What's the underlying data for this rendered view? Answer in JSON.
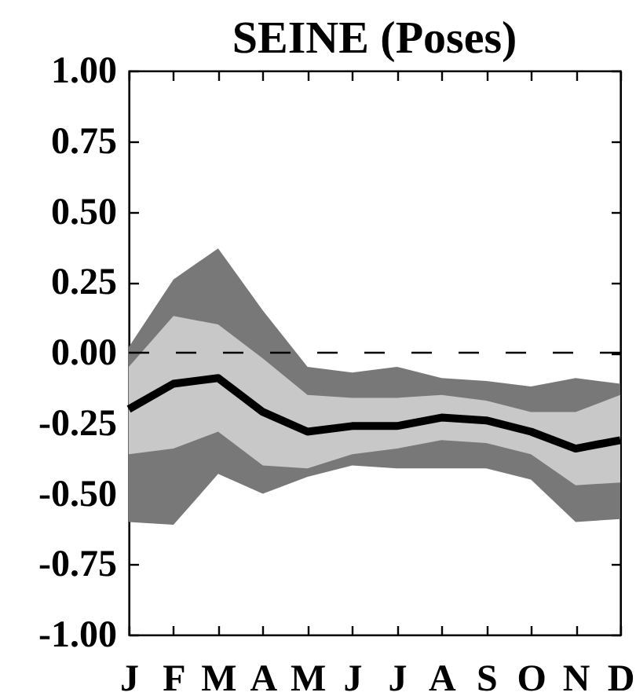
{
  "chart_data": {
    "type": "line",
    "title": "SEINE (Poses)",
    "categories": [
      "J",
      "F",
      "M",
      "A",
      "M",
      "J",
      "J",
      "A",
      "S",
      "O",
      "N",
      "D"
    ],
    "series": [
      {
        "color": "#787878",
        "values": [
          null,
          null,
          null,
          null,
          null,
          null,
          null,
          null,
          null,
          null,
          null,
          null
        ],
        "lower": [
          -0.6,
          -0.61,
          -0.43,
          -0.5,
          -0.44,
          -0.4,
          -0.41,
          -0.41,
          -0.41,
          -0.45,
          -0.6,
          -0.59
        ],
        "upper": [
          0.02,
          0.26,
          0.37,
          0.15,
          -0.05,
          -0.07,
          -0.05,
          -0.09,
          -0.1,
          -0.12,
          -0.09,
          -0.11
        ]
      },
      {
        "color": "#c8c8c8",
        "values": [
          null,
          null,
          null,
          null,
          null,
          null,
          null,
          null,
          null,
          null,
          null,
          null
        ],
        "lower": [
          -0.36,
          -0.34,
          -0.28,
          -0.4,
          -0.41,
          -0.36,
          -0.34,
          -0.31,
          -0.32,
          -0.36,
          -0.47,
          -0.46
        ],
        "upper": [
          -0.05,
          0.13,
          0.1,
          -0.02,
          -0.15,
          -0.16,
          -0.16,
          -0.15,
          -0.17,
          -0.21,
          -0.21,
          -0.15
        ]
      },
      {
        "color": "#000000",
        "values": [
          -0.2,
          -0.11,
          -0.09,
          -0.21,
          -0.28,
          -0.26,
          -0.26,
          -0.23,
          -0.24,
          -0.28,
          -0.34,
          -0.31
        ]
      }
    ],
    "ref_lines": [
      {
        "axis": "y",
        "value": 0,
        "color": "#000000",
        "line_style": "dashed"
      }
    ],
    "ylim": [
      -1,
      1
    ],
    "yticks": [
      {
        "value": -1,
        "label": "-1.00"
      },
      -0.75,
      {
        "value": -0.5,
        "label": "-0.50"
      },
      -0.25,
      {
        "value": 0,
        "label": "0.00"
      },
      0.25,
      {
        "value": 0.5,
        "label": "0.50"
      },
      0.75,
      {
        "value": 1,
        "label": "1.00"
      }
    ],
    "grid": false
  }
}
